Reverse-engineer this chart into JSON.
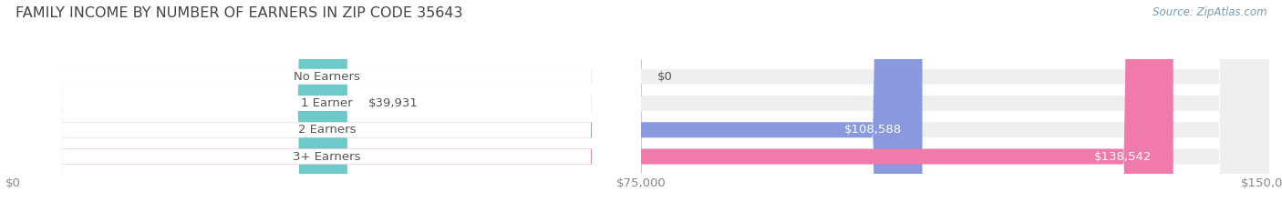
{
  "title": "FAMILY INCOME BY NUMBER OF EARNERS IN ZIP CODE 35643",
  "source": "Source: ZipAtlas.com",
  "categories": [
    "No Earners",
    "1 Earner",
    "2 Earners",
    "3+ Earners"
  ],
  "values": [
    0,
    39931,
    108588,
    138542
  ],
  "bar_colors": [
    "#c9a0c8",
    "#6ecac8",
    "#8899dd",
    "#f07aaa"
  ],
  "bar_bg_color": "#efefef",
  "value_labels": [
    "$0",
    "$39,931",
    "$108,588",
    "$138,542"
  ],
  "xlim": [
    0,
    150000
  ],
  "xticks": [
    0,
    75000,
    150000
  ],
  "xtick_labels": [
    "$0",
    "$75,000",
    "$150,000"
  ],
  "background_color": "#ffffff",
  "title_fontsize": 11.5,
  "label_fontsize": 9.5,
  "source_fontsize": 8.5,
  "bar_height": 0.58,
  "fig_width": 14.06,
  "fig_height": 2.33
}
